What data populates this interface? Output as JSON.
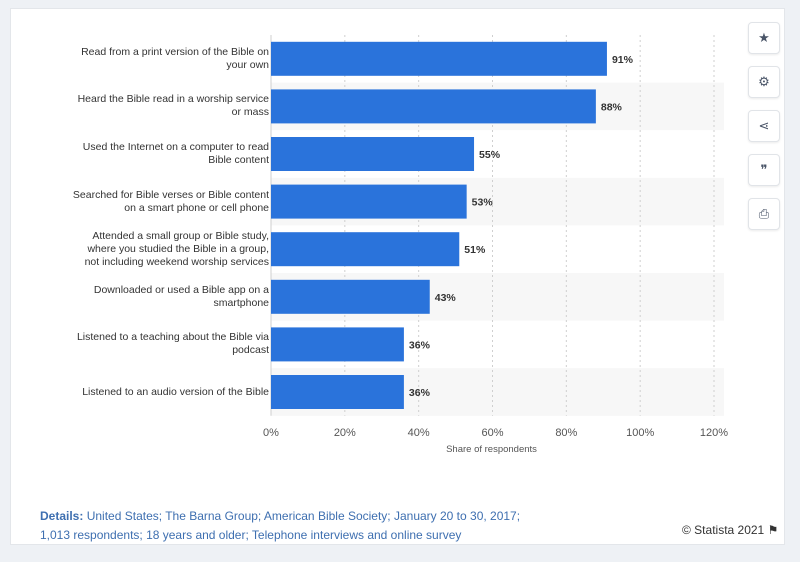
{
  "chart_data": {
    "type": "bar",
    "orientation": "horizontal",
    "categories": [
      [
        "Read from a print version of the Bible on",
        "your own"
      ],
      [
        "Heard the Bible read in a worship service",
        "or mass"
      ],
      [
        "Used the Internet on a computer to read",
        "Bible content"
      ],
      [
        "Searched for Bible verses or Bible content",
        "on a smart phone or cell phone"
      ],
      [
        "Attended a small group or Bible study,",
        "where you studied the Bible in a group,",
        "not including weekend worship services"
      ],
      [
        "Downloaded or used a Bible app on a",
        "smartphone"
      ],
      [
        "Listened to a teaching about the Bible via",
        "podcast"
      ],
      [
        "Listened to an audio version of the Bible"
      ]
    ],
    "values": [
      91,
      88,
      55,
      53,
      51,
      43,
      36,
      36
    ],
    "data_labels": [
      "91%",
      "88%",
      "55%",
      "53%",
      "51%",
      "43%",
      "36%",
      "36%"
    ],
    "xlim": [
      0,
      120
    ],
    "x_ticks": [
      0,
      20,
      40,
      60,
      80,
      100,
      120
    ],
    "x_tick_labels": [
      "0%",
      "20%",
      "40%",
      "60%",
      "80%",
      "100%",
      "120%"
    ],
    "xlabel": "Share of respondents",
    "grid": true,
    "bar_color": "#2a73db"
  },
  "toolbar": {
    "buttons": [
      {
        "name": "favorite-button",
        "icon": "star-icon",
        "glyph": "★"
      },
      {
        "name": "settings-button",
        "icon": "gear-icon",
        "glyph": "⚙"
      },
      {
        "name": "share-button",
        "icon": "share-icon",
        "glyph": "⋖"
      },
      {
        "name": "cite-button",
        "icon": "quote-icon",
        "glyph": "❞"
      },
      {
        "name": "print-button",
        "icon": "print-icon",
        "glyph": "⎙"
      }
    ]
  },
  "footer": {
    "details_label": "Details:",
    "details_line1": "United States; The Barna Group; American Bible Society; January 20 to 30, 2017;",
    "details_line2": "1,013 respondents; 18 years and older; Telephone interviews and online survey",
    "copyright": "© Statista 2021",
    "flag_icon": "flag-icon"
  }
}
